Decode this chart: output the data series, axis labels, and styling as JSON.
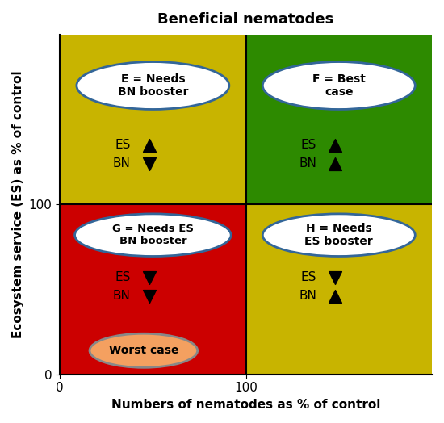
{
  "title": "Beneficial nematodes",
  "xlabel": "Numbers of nematodes as % of control",
  "ylabel": "Ecosystem service (ES) as % of control",
  "quadrant_colors": {
    "top_left": "#c8b400",
    "top_right": "#2d8a00",
    "bottom_left": "#cc0000",
    "bottom_right": "#c8b400"
  },
  "ellipse_labels": {
    "E": "E = Needs\nBN booster",
    "F": "F = Best\ncase",
    "G": "G = Needs ES\nBN booster",
    "H": "H = Needs\nES booster",
    "worst": "Worst case"
  },
  "ellipse_face_colors": {
    "E": "#ffffff",
    "F": "#ffffff",
    "G": "#ffffff",
    "H": "#ffffff",
    "worst": "#f4a060"
  },
  "ellipse_edge_colors": {
    "E": "#336699",
    "F": "#336699",
    "G": "#336699",
    "H": "#336699",
    "worst": "#888888"
  },
  "background_color": "#ffffff",
  "axis_ticks": [
    0,
    100
  ],
  "xlim": [
    0,
    200
  ],
  "ylim": [
    0,
    200
  ],
  "quadrants": {
    "E": {
      "x_center": 50,
      "y_center": 150,
      "es_up": true,
      "bn_up": false
    },
    "F": {
      "x_center": 150,
      "y_center": 150,
      "es_up": true,
      "bn_up": true
    },
    "G": {
      "x_center": 50,
      "y_center": 50,
      "es_up": false,
      "bn_up": false
    },
    "H": {
      "x_center": 150,
      "y_center": 50,
      "es_up": false,
      "bn_up": true
    }
  }
}
